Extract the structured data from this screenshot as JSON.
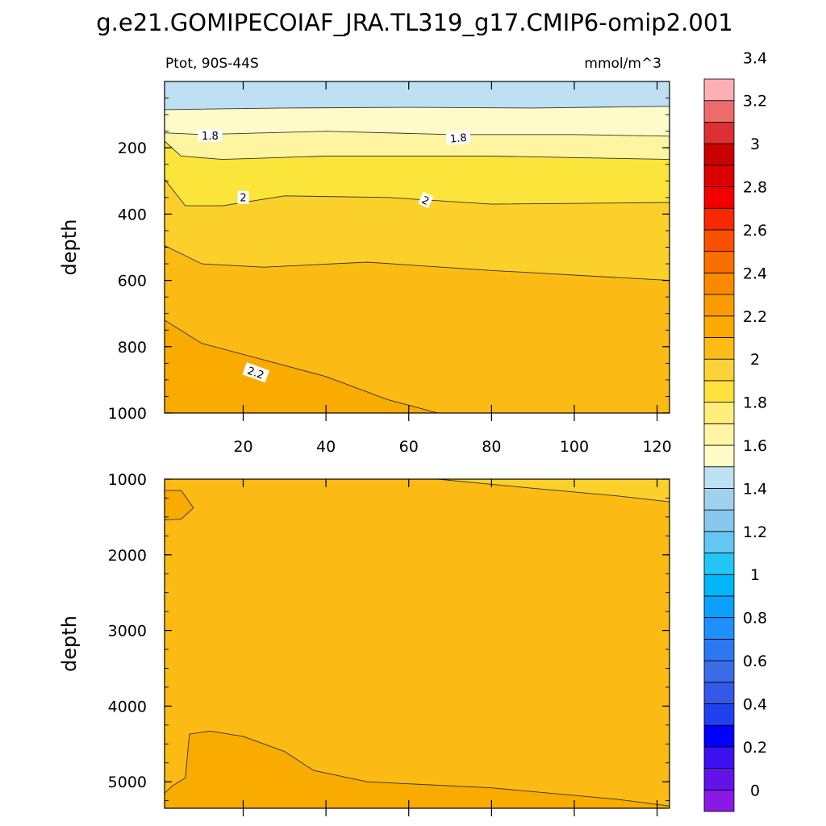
{
  "chart_data": {
    "type": "contour",
    "title": "g.e21.GOMIPECOIAF_JRA.TL319_g17.CMIP6-omip2.001",
    "subtitle_left": "Ptot, 90S-44S",
    "subtitle_right": "mmol/m^3",
    "x_range": [
      1,
      123
    ],
    "x_ticks": [
      20,
      40,
      60,
      80,
      100,
      120
    ],
    "x_tick_labels": [
      "20",
      "40",
      "60",
      "80",
      "100",
      "120"
    ],
    "panels": [
      {
        "name": "upper",
        "ylabel": "depth",
        "y_range": [
          0,
          1000
        ],
        "y_reversed": true,
        "y_ticks": [
          200,
          400,
          600,
          800,
          1000
        ],
        "y_tick_labels": [
          "200",
          "400",
          "600",
          "800",
          "1000"
        ],
        "contour_lines": [
          {
            "level": 1.7,
            "depth_at_x": [
              [
                1,
                85
              ],
              [
                30,
                80
              ],
              [
                60,
                78
              ],
              [
                90,
                80
              ],
              [
                123,
                75
              ]
            ]
          },
          {
            "level": 1.8,
            "depth_at_x": [
              [
                1,
                155
              ],
              [
                10,
                160
              ],
              [
                40,
                150
              ],
              [
                70,
                160
              ],
              [
                100,
                160
              ],
              [
                123,
                165
              ]
            ]
          },
          {
            "level": 1.9,
            "depth_at_x": [
              [
                1,
                180
              ],
              [
                5,
                225
              ],
              [
                15,
                235
              ],
              [
                40,
                225
              ],
              [
                80,
                225
              ],
              [
                123,
                235
              ]
            ]
          },
          {
            "level": 2.0,
            "depth_at_x": [
              [
                1,
                295
              ],
              [
                6,
                375
              ],
              [
                15,
                375
              ],
              [
                30,
                345
              ],
              [
                55,
                350
              ],
              [
                80,
                370
              ],
              [
                123,
                365
              ]
            ]
          },
          {
            "level": 2.1,
            "depth_at_x": [
              [
                1,
                495
              ],
              [
                10,
                550
              ],
              [
                25,
                560
              ],
              [
                50,
                545
              ],
              [
                80,
                570
              ],
              [
                123,
                600
              ]
            ]
          },
          {
            "level": 2.2,
            "depth_at_x": [
              [
                1,
                720
              ],
              [
                10,
                790
              ],
              [
                25,
                840
              ],
              [
                40,
                890
              ],
              [
                55,
                960
              ],
              [
                67,
                1000
              ]
            ]
          }
        ],
        "contour_labels": [
          {
            "text": "1.8",
            "x": 12,
            "depth": 165
          },
          {
            "text": "1.8",
            "x": 72,
            "depth": 172
          },
          {
            "text": "2",
            "x": 20,
            "depth": 352
          },
          {
            "text": "2",
            "x": 64,
            "depth": 360
          },
          {
            "text": "2.2",
            "x": 23,
            "depth": 880
          }
        ]
      },
      {
        "name": "lower",
        "ylabel": "depth",
        "y_range": [
          1000,
          5350
        ],
        "y_reversed": true,
        "y_ticks": [
          1000,
          2000,
          3000,
          4000,
          5000
        ],
        "y_tick_labels": [
          "1000",
          "2000",
          "3000",
          "4000",
          "5000"
        ],
        "contour_lines": [
          {
            "level": 2.2,
            "depth_at_x": [
              [
                67,
                1000
              ],
              [
                90,
                1120
              ],
              [
                110,
                1220
              ],
              [
                123,
                1300
              ]
            ]
          },
          {
            "level": 2.3,
            "depth_at_x": [
              [
                1,
                1150
              ],
              [
                5,
                1150
              ],
              [
                8,
                1380
              ],
              [
                5,
                1530
              ],
              [
                1,
                1540
              ]
            ]
          },
          {
            "level": 2.3,
            "depth_at_x": [
              [
                1,
                5150
              ],
              [
                3,
                5050
              ],
              [
                6,
                4950
              ],
              [
                7,
                4370
              ],
              [
                12,
                4330
              ],
              [
                20,
                4400
              ],
              [
                30,
                4600
              ],
              [
                37,
                4850
              ],
              [
                50,
                5000
              ],
              [
                80,
                5080
              ],
              [
                110,
                5230
              ],
              [
                123,
                5320
              ]
            ]
          }
        ]
      }
    ],
    "colorbar": {
      "levels": [
        "0",
        "0.2",
        "0.4",
        "0.6",
        "0.8",
        "1",
        "1.2",
        "1.4",
        "1.6",
        "1.8",
        "2",
        "2.2",
        "2.4",
        "2.6",
        "2.8",
        "3",
        "3.2",
        "3.4"
      ],
      "colors": [
        "#8a19e6",
        "#6214e8",
        "#3c10f0",
        "#0000ff",
        "#2040f0",
        "#3458e8",
        "#3a6ce8",
        "#2b78f0",
        "#1e90ff",
        "#0ba0ff",
        "#00b6f8",
        "#22c6f4",
        "#64c6f2",
        "#88c8ec",
        "#a0d2f0",
        "#bee1f3",
        "#fffcc8",
        "#fff5a4",
        "#ffee7c",
        "#ffe240",
        "#fcd23a",
        "#fbbc18",
        "#fbaa00",
        "#fa9c00",
        "#f98a00",
        "#f97000",
        "#f85000",
        "#f82800",
        "#f20000",
        "#dc0000",
        "#ca0000",
        "#dc3032",
        "#ec6c6c",
        "#fcb0b4"
      ]
    }
  }
}
